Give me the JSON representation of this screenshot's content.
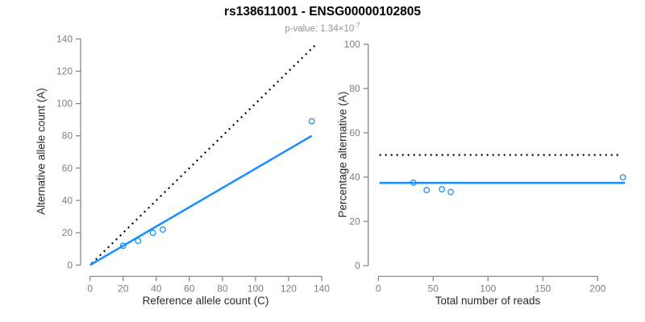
{
  "header": {
    "title": "rs138611001 - ENSG00000102805",
    "subtitle_text": "p-value: 1.34×10",
    "subtitle_exponent": "-7"
  },
  "colors": {
    "accent_blue": "#1E90FF",
    "axis_gray": "#7f7f7f",
    "tick_label_gray": "#7f7f7f",
    "axis_title_dark": "#2b2b2b",
    "dotted_line_black": "#000000",
    "subtitle_gray": "#949494"
  },
  "chart_data": [
    {
      "type": "scatter",
      "name": "allele-counts-plot",
      "xlabel": "Reference allele count (C)",
      "ylabel": "Alternative allele count (A)",
      "xlim": [
        0,
        140
      ],
      "ylim": [
        0,
        140
      ],
      "xticks": [
        0,
        20,
        40,
        60,
        80,
        100,
        120,
        140
      ],
      "yticks": [
        0,
        20,
        40,
        60,
        80,
        100,
        120,
        140
      ],
      "grid": false,
      "legend": "none",
      "points": [
        [
          20,
          12
        ],
        [
          29,
          15
        ],
        [
          38,
          20
        ],
        [
          44,
          22
        ],
        [
          134,
          89
        ]
      ],
      "lines": [
        {
          "name": "expected-50pct-line",
          "style": "dotted",
          "color": "#000000",
          "from": [
            1,
            1
          ],
          "to": [
            136,
            136
          ]
        },
        {
          "name": "fitted-line",
          "style": "solid",
          "color": "#1E90FF",
          "from": [
            0,
            0
          ],
          "to": [
            134,
            80
          ]
        }
      ]
    },
    {
      "type": "scatter",
      "name": "percentage-alternative-plot",
      "xlabel": "Total number of reads",
      "ylabel": "Percentage alternative (A)",
      "xlim": [
        0,
        225
      ],
      "ylim": [
        0,
        100
      ],
      "xticks": [
        0,
        50,
        100,
        150,
        200
      ],
      "yticks": [
        0,
        20,
        40,
        60,
        80,
        100
      ],
      "grid": false,
      "legend": "none",
      "points": [
        [
          32,
          37.5
        ],
        [
          44,
          34.1
        ],
        [
          58,
          34.5
        ],
        [
          66,
          33.3
        ],
        [
          223,
          39.9
        ]
      ],
      "lines": [
        {
          "name": "expected-50pct-line",
          "style": "dotted",
          "color": "#000000",
          "from": [
            1,
            50
          ],
          "to": [
            220,
            50
          ]
        },
        {
          "name": "fitted-line",
          "style": "solid",
          "color": "#1E90FF",
          "from": [
            1,
            37.4
          ],
          "to": [
            225,
            37.4
          ]
        }
      ]
    }
  ]
}
